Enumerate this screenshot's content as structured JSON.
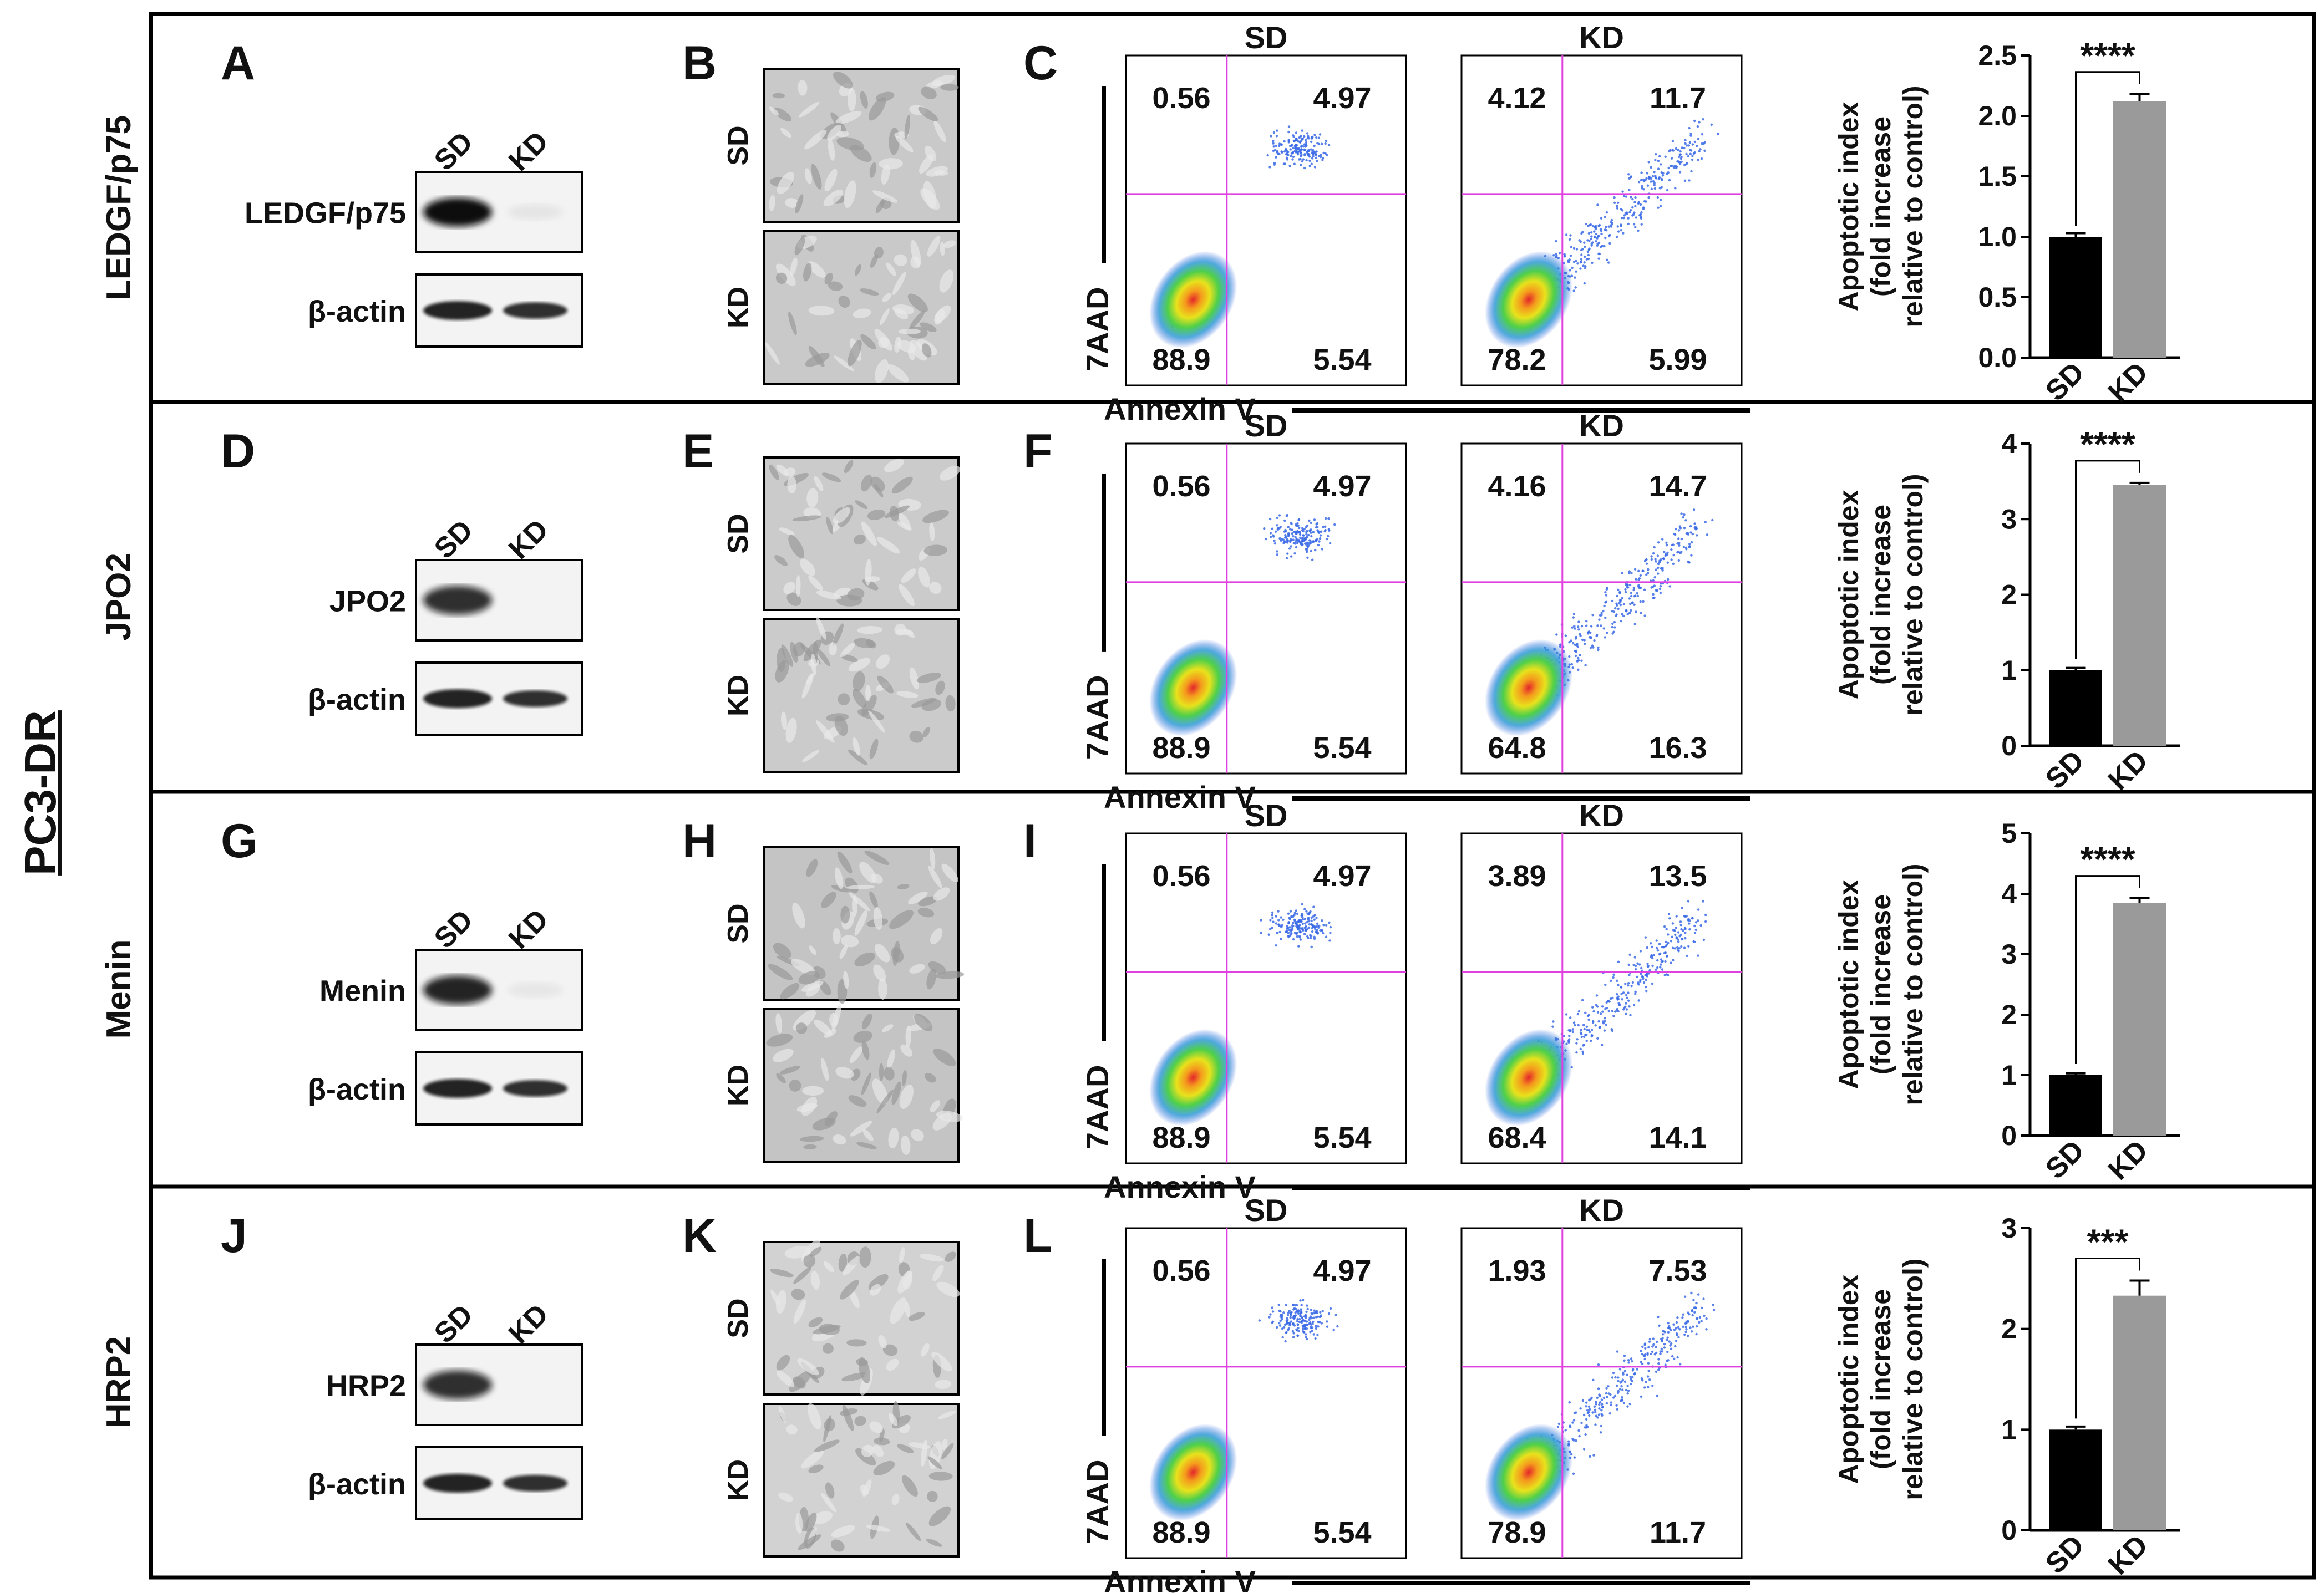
{
  "figure": {
    "cell_line": "PC3-DR",
    "axis_x_label": "Annexin V",
    "axis_y_label": "7AAD",
    "condition_labels": [
      "SD",
      "KD"
    ],
    "loading_control": "β-actin",
    "bar_ylabel_line1": "Apoptotic index",
    "bar_ylabel_line2": "(fold increase",
    "bar_ylabel_line3": "relative to control)",
    "rows": [
      {
        "row_label": "LEDGF/p75",
        "panel_letters": [
          "A",
          "B",
          "C"
        ],
        "blot_target": "LEDGF/p75",
        "flow": {
          "SD": {
            "ul": "0.56",
            "ur": "4.97",
            "ll": "88.9",
            "lr": "5.54"
          },
          "KD": {
            "ul": "4.12",
            "ur": "11.7",
            "ll": "78.2",
            "lr": "5.99"
          }
        },
        "significance": "****"
      },
      {
        "row_label": "JPO2",
        "panel_letters": [
          "D",
          "E",
          "F"
        ],
        "blot_target": "JPO2",
        "flow": {
          "SD": {
            "ul": "0.56",
            "ur": "4.97",
            "ll": "88.9",
            "lr": "5.54"
          },
          "KD": {
            "ul": "4.16",
            "ur": "14.7",
            "ll": "64.8",
            "lr": "16.3"
          }
        },
        "significance": "****"
      },
      {
        "row_label": "Menin",
        "panel_letters": [
          "G",
          "H",
          "I"
        ],
        "blot_target": "Menin",
        "flow": {
          "SD": {
            "ul": "0.56",
            "ur": "4.97",
            "ll": "88.9",
            "lr": "5.54"
          },
          "KD": {
            "ul": "3.89",
            "ur": "13.5",
            "ll": "68.4",
            "lr": "14.1"
          }
        },
        "significance": "****"
      },
      {
        "row_label": "HRP2",
        "panel_letters": [
          "J",
          "K",
          "L"
        ],
        "blot_target": "HRP2",
        "flow": {
          "SD": {
            "ul": "0.56",
            "ur": "4.97",
            "ll": "88.9",
            "lr": "5.54"
          },
          "KD": {
            "ul": "1.93",
            "ur": "7.53",
            "ll": "78.9",
            "lr": "11.7"
          }
        },
        "significance": "***"
      }
    ]
  },
  "chart_data": [
    {
      "type": "bar",
      "title": "LEDGF/p75",
      "categories": [
        "SD",
        "KD"
      ],
      "values": [
        1.0,
        2.12
      ],
      "errors": [
        0.03,
        0.06
      ],
      "ylabel": "Apoptotic index (fold increase relative to control)",
      "ylim": [
        0,
        2.5
      ],
      "yticks": [
        "0.0",
        "0.5",
        "1.0",
        "1.5",
        "2.0",
        "2.5"
      ],
      "colors": [
        "#000000",
        "#9a9a9a"
      ],
      "significance": "****"
    },
    {
      "type": "bar",
      "title": "JPO2",
      "categories": [
        "SD",
        "KD"
      ],
      "values": [
        1.0,
        3.45
      ],
      "errors": [
        0.03,
        0.03
      ],
      "ylabel": "Apoptotic index (fold increase relative to control)",
      "ylim": [
        0,
        4
      ],
      "yticks": [
        "0",
        "1",
        "2",
        "3",
        "4"
      ],
      "colors": [
        "#000000",
        "#9a9a9a"
      ],
      "significance": "****"
    },
    {
      "type": "bar",
      "title": "Menin",
      "categories": [
        "SD",
        "KD"
      ],
      "values": [
        1.0,
        3.85
      ],
      "errors": [
        0.03,
        0.08
      ],
      "ylabel": "Apoptotic index (fold increase relative to control)",
      "ylim": [
        0,
        5
      ],
      "yticks": [
        "0",
        "1",
        "2",
        "3",
        "4",
        "5"
      ],
      "colors": [
        "#000000",
        "#9a9a9a"
      ],
      "significance": "****"
    },
    {
      "type": "bar",
      "title": "HRP2",
      "categories": [
        "SD",
        "KD"
      ],
      "values": [
        1.0,
        2.33
      ],
      "errors": [
        0.03,
        0.15
      ],
      "ylabel": "Apoptotic index (fold increase relative to control)",
      "ylim": [
        0,
        3
      ],
      "yticks": [
        "0",
        "1",
        "2",
        "3"
      ],
      "colors": [
        "#000000",
        "#9a9a9a"
      ],
      "significance": "***"
    }
  ]
}
